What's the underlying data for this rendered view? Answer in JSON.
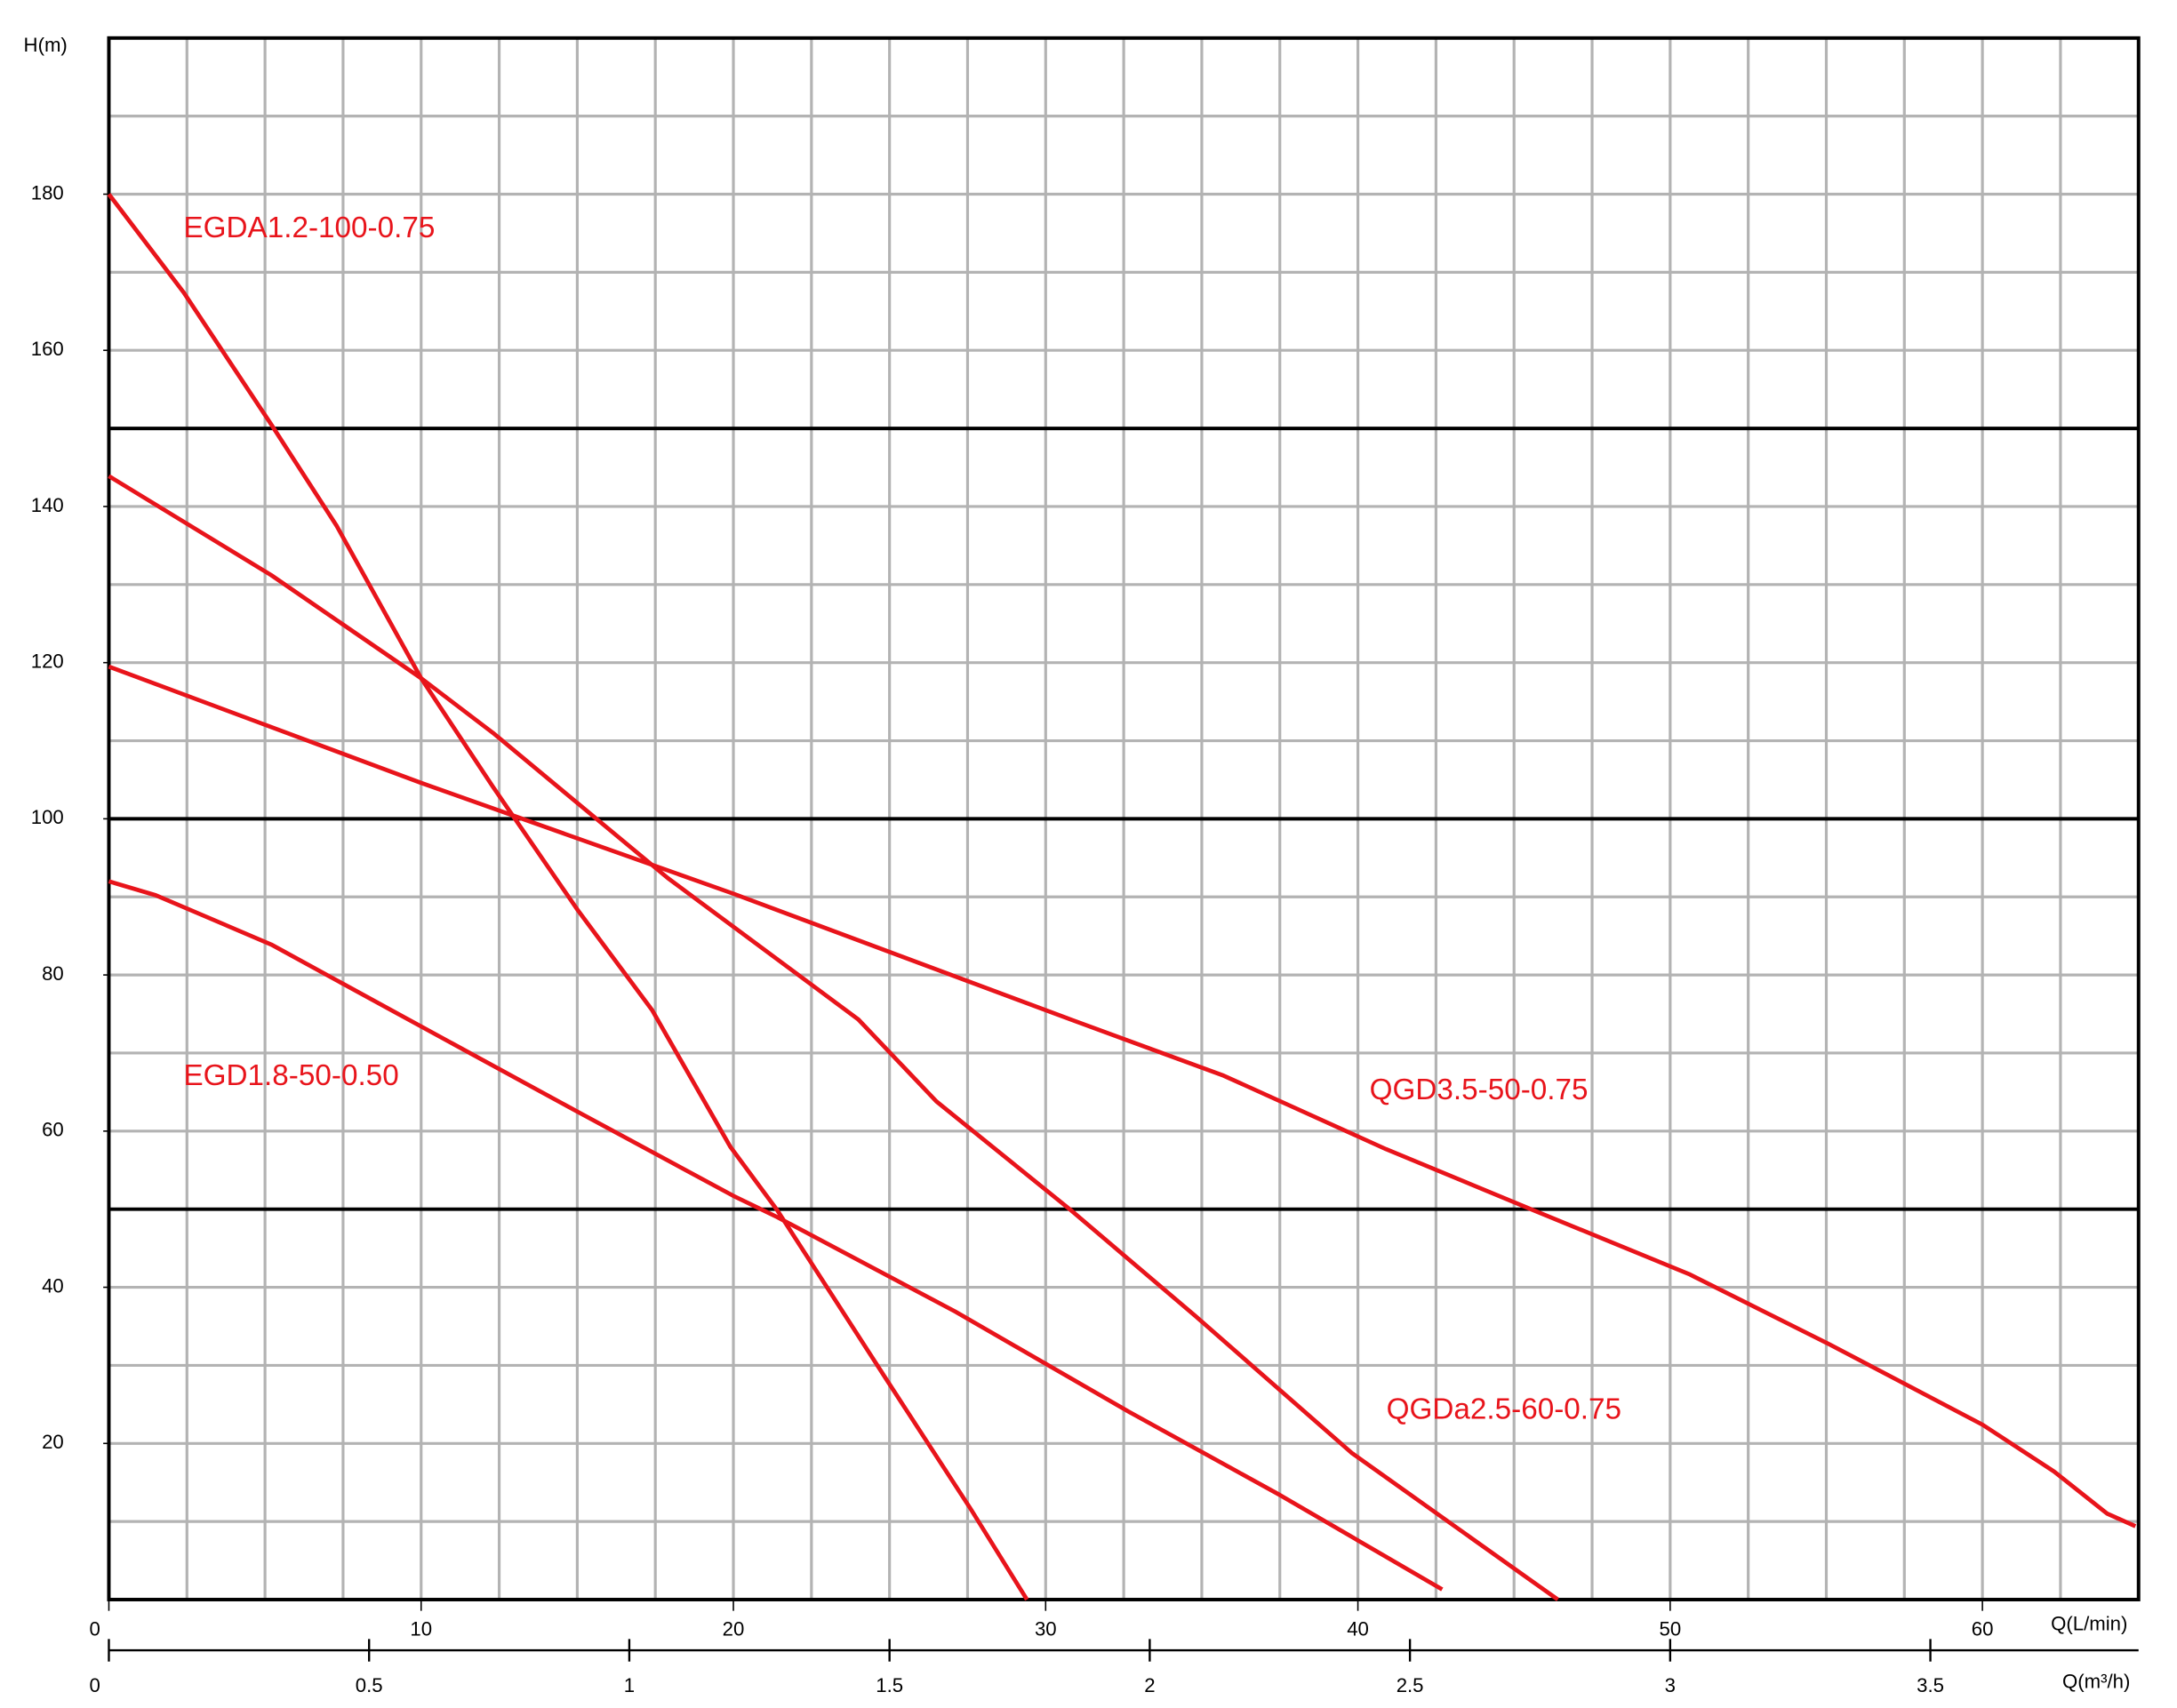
{
  "chart_data": {
    "type": "line",
    "y_label": "H(m)",
    "x_label": "Q(L/min)",
    "x2_label": "Q(m³/h)",
    "xlim": [
      0,
      65
    ],
    "xticks": [
      0,
      10,
      20,
      30,
      40,
      50,
      60
    ],
    "x2lim": [
      0,
      3.9
    ],
    "x2ticks": [
      0,
      0.5,
      1,
      1.5,
      2,
      2.5,
      3,
      3.5
    ],
    "ylim": [
      0,
      200
    ],
    "yticks": [
      20,
      40,
      60,
      80,
      100,
      120,
      140,
      160,
      180
    ],
    "grid": true,
    "major_lines": [
      50,
      100,
      150
    ],
    "series": [
      {
        "name": "EGDA1.2-100-0.75",
        "color": "#e8141b",
        "x": [
          0,
          2.4,
          5.2,
          7.3,
          10,
          12.3,
          15,
          17.4,
          19.9,
          21.4,
          24.9,
          27.6,
          29.4
        ],
        "values": [
          180,
          167.4,
          150.5,
          137.5,
          118,
          104.1,
          88.4,
          75.5,
          58,
          49.9,
          28.2,
          11.6,
          0
        ]
      },
      {
        "name": "EGD1.8-50-0.50",
        "color": "#e8141b",
        "x": [
          0,
          1.5,
          5.2,
          10,
          15,
          20,
          21.4,
          27.1,
          32.6,
          37.5,
          42.7
        ],
        "values": [
          92,
          90.2,
          83.9,
          73.4,
          62.5,
          51.7,
          49,
          36.9,
          24.2,
          13.4,
          1.3
        ]
      },
      {
        "name": "QGD3.5-50-0.75",
        "color": "#e8141b",
        "x": [
          0,
          10,
          20,
          30.8,
          35.7,
          40.9,
          45.6,
          50.6,
          55.1,
          60,
          62.3,
          64,
          64.9
        ],
        "values": [
          119.5,
          104.6,
          90.4,
          74.3,
          67.1,
          57.7,
          49.9,
          41.7,
          32.7,
          22.4,
          16.4,
          11,
          9.4
        ]
      },
      {
        "name": "QGDa2.5-60-0.75",
        "color": "#e8141b",
        "x": [
          0,
          5.2,
          10,
          12.3,
          17.9,
          24,
          26.5,
          30.8,
          34.8,
          39.8,
          46.4
        ],
        "values": [
          143.9,
          131.2,
          118,
          111,
          92.4,
          74.3,
          63.8,
          49.9,
          36.3,
          18.8,
          0
        ]
      }
    ]
  }
}
